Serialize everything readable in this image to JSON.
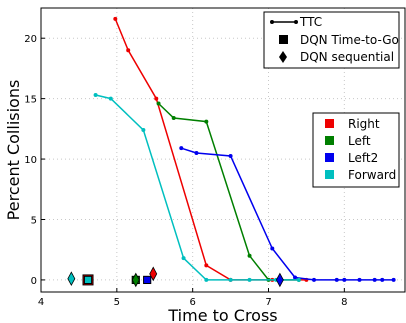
{
  "chart_data": {
    "type": "line",
    "title": "",
    "xlabel": "Time to Cross",
    "ylabel": "Percent Collisions",
    "xlim": [
      4,
      8.8
    ],
    "ylim": [
      -1,
      22.5
    ],
    "x_ticks": [
      4,
      5,
      6,
      7,
      8
    ],
    "y_ticks": [
      0,
      5,
      10,
      15,
      20
    ],
    "grid": true,
    "series": [
      {
        "name": "Right",
        "color": "#ee0000",
        "x": [
          4.98,
          5.15,
          5.52,
          6.18,
          6.5,
          7.05,
          7.5
        ],
        "y": [
          21.6,
          19.0,
          15.0,
          1.2,
          0.0,
          0.0,
          0.0
        ]
      },
      {
        "name": "Left",
        "color": "#007f00",
        "x": [
          5.55,
          5.75,
          6.18,
          6.75,
          7.0,
          7.4
        ],
        "y": [
          14.6,
          13.4,
          13.1,
          2.0,
          0.0,
          0.0
        ]
      },
      {
        "name": "Left2",
        "color": "#0000ee",
        "x": [
          5.85,
          6.05,
          6.5,
          7.05,
          7.35,
          7.6,
          7.9,
          8.0,
          8.2,
          8.4,
          8.5,
          8.65
        ],
        "y": [
          10.9,
          10.5,
          10.25,
          2.6,
          0.2,
          0.0,
          0.0,
          0.0,
          0.0,
          0.0,
          0.0,
          0.0
        ]
      },
      {
        "name": "Forward",
        "color": "#00bfbf",
        "x": [
          4.72,
          4.92,
          5.35,
          5.88,
          6.18,
          6.5,
          6.75,
          7.1,
          7.4
        ],
        "y": [
          15.3,
          15.0,
          12.4,
          1.8,
          0.0,
          0.0,
          0.0,
          0.0,
          0.0
        ]
      }
    ],
    "dqn_time_to_go": [
      {
        "series": "Right",
        "x": 4.62,
        "y": 0.0
      },
      {
        "series": "Left",
        "x": 5.25,
        "y": 0.0
      },
      {
        "series": "Left2",
        "x": 5.4,
        "y": 0.0
      },
      {
        "series": "Forward",
        "x": 4.62,
        "y": 0.0
      }
    ],
    "dqn_sequential": [
      {
        "series": "Right",
        "x": 5.48,
        "y": 0.5
      },
      {
        "series": "Left",
        "x": 5.25,
        "y": 0.0
      },
      {
        "series": "Left2",
        "x": 7.15,
        "y": 0.0
      },
      {
        "series": "Forward",
        "x": 4.4,
        "y": 0.1
      }
    ],
    "legend_markers": {
      "location": "top-right",
      "entries": [
        "TTC",
        "DQN Time-to-Go",
        "DQN sequential"
      ]
    },
    "legend_series": {
      "location": "center-right",
      "entries": [
        "Right",
        "Left",
        "Left2",
        "Forward"
      ]
    }
  }
}
